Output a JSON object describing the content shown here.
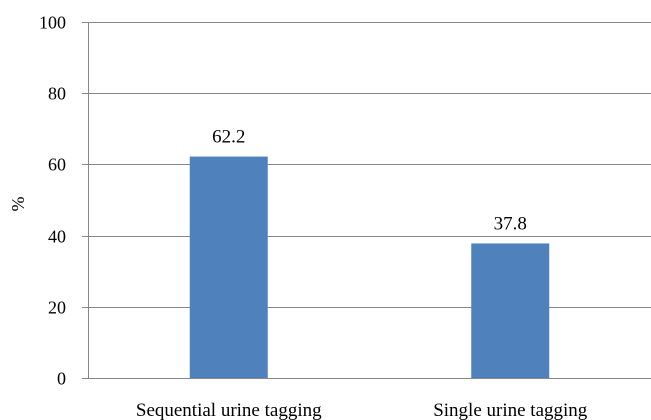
{
  "chart_data": {
    "type": "bar",
    "categories": [
      "Sequential urine tagging",
      "Single urine tagging"
    ],
    "values": [
      62.2,
      37.8
    ],
    "data_labels": [
      "62.2",
      "37.8"
    ],
    "title": "",
    "xlabel": "",
    "ylabel": "%",
    "ylim": [
      0,
      100
    ],
    "yticks": [
      "0",
      "20",
      "40",
      "60",
      "80",
      "100"
    ],
    "grid": true,
    "legend": "none",
    "colors": {
      "bar": "#4f81bd",
      "grid": "#868686",
      "axis": "#868686"
    }
  }
}
